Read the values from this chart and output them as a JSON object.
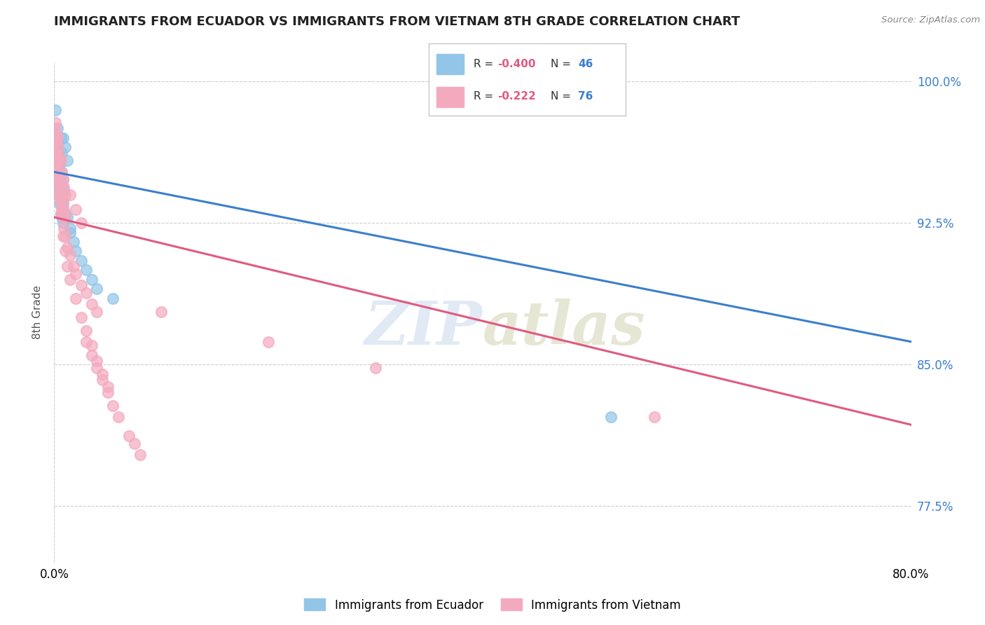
{
  "title": "IMMIGRANTS FROM ECUADOR VS IMMIGRANTS FROM VIETNAM 8TH GRADE CORRELATION CHART",
  "source": "Source: ZipAtlas.com",
  "ylabel": "8th Grade",
  "ecuador_color": "#92C5E8",
  "vietnam_color": "#F4AABE",
  "ecuador_line_color": "#3B7FCC",
  "vietnam_line_color": "#E05A80",
  "ecuador_r": -0.4,
  "ecuador_n": 46,
  "vietnam_r": -0.222,
  "vietnam_n": 76,
  "watermark": "ZIPatlas",
  "xlim": [
    0.0,
    0.8
  ],
  "ylim": [
    0.745,
    1.01
  ],
  "y_ticks": [
    0.775,
    0.85,
    0.925,
    1.0
  ],
  "y_tick_labels": [
    "77.5%",
    "85.0%",
    "92.5%",
    "100.0%"
  ],
  "x_ticks": [
    0.0,
    0.8
  ],
  "x_tick_labels": [
    "0.0%",
    "80.0%"
  ],
  "ecuador_points_x": [
    0.001,
    0.008,
    0.01,
    0.005,
    0.012,
    0.006,
    0.003,
    0.003,
    0.007,
    0.004,
    0.002,
    0.004,
    0.005,
    0.006,
    0.008,
    0.003,
    0.005,
    0.007,
    0.009,
    0.004,
    0.002,
    0.005,
    0.004,
    0.003,
    0.006,
    0.007,
    0.008,
    0.01,
    0.012,
    0.015,
    0.003,
    0.004,
    0.005,
    0.006,
    0.007,
    0.008,
    0.015,
    0.018,
    0.02,
    0.025,
    0.03,
    0.035,
    0.04,
    0.055,
    0.52,
    0.005
  ],
  "ecuador_points_y": [
    0.985,
    0.97,
    0.965,
    0.96,
    0.958,
    0.97,
    0.975,
    0.965,
    0.962,
    0.968,
    0.972,
    0.96,
    0.956,
    0.952,
    0.948,
    0.955,
    0.95,
    0.945,
    0.942,
    0.955,
    0.962,
    0.948,
    0.945,
    0.952,
    0.94,
    0.938,
    0.935,
    0.93,
    0.928,
    0.922,
    0.945,
    0.94,
    0.935,
    0.93,
    0.928,
    0.925,
    0.92,
    0.915,
    0.91,
    0.905,
    0.9,
    0.895,
    0.89,
    0.885,
    0.822,
    0.958
  ],
  "vietnam_points_x": [
    0.001,
    0.001,
    0.002,
    0.002,
    0.003,
    0.003,
    0.004,
    0.004,
    0.005,
    0.005,
    0.006,
    0.006,
    0.007,
    0.007,
    0.008,
    0.008,
    0.009,
    0.009,
    0.01,
    0.01,
    0.002,
    0.003,
    0.004,
    0.005,
    0.006,
    0.007,
    0.008,
    0.009,
    0.01,
    0.012,
    0.015,
    0.018,
    0.02,
    0.025,
    0.03,
    0.035,
    0.04,
    0.015,
    0.02,
    0.025,
    0.002,
    0.003,
    0.004,
    0.005,
    0.006,
    0.008,
    0.01,
    0.012,
    0.015,
    0.02,
    0.025,
    0.03,
    0.035,
    0.04,
    0.045,
    0.05,
    0.03,
    0.035,
    0.04,
    0.045,
    0.05,
    0.055,
    0.06,
    0.07,
    0.075,
    0.08,
    0.56,
    0.3,
    0.2,
    0.1,
    0.001,
    0.001,
    0.002,
    0.002,
    0.003,
    0.003
  ],
  "vietnam_points_y": [
    0.975,
    0.968,
    0.972,
    0.962,
    0.97,
    0.958,
    0.965,
    0.952,
    0.96,
    0.948,
    0.958,
    0.945,
    0.952,
    0.94,
    0.948,
    0.936,
    0.944,
    0.932,
    0.94,
    0.928,
    0.955,
    0.95,
    0.945,
    0.94,
    0.935,
    0.932,
    0.928,
    0.922,
    0.918,
    0.912,
    0.908,
    0.902,
    0.898,
    0.892,
    0.888,
    0.882,
    0.878,
    0.94,
    0.932,
    0.925,
    0.96,
    0.952,
    0.945,
    0.938,
    0.93,
    0.918,
    0.91,
    0.902,
    0.895,
    0.885,
    0.875,
    0.868,
    0.86,
    0.852,
    0.845,
    0.838,
    0.862,
    0.855,
    0.848,
    0.842,
    0.835,
    0.828,
    0.822,
    0.812,
    0.808,
    0.802,
    0.822,
    0.848,
    0.862,
    0.878,
    0.978,
    0.972,
    0.968,
    0.962,
    0.958,
    0.952
  ]
}
